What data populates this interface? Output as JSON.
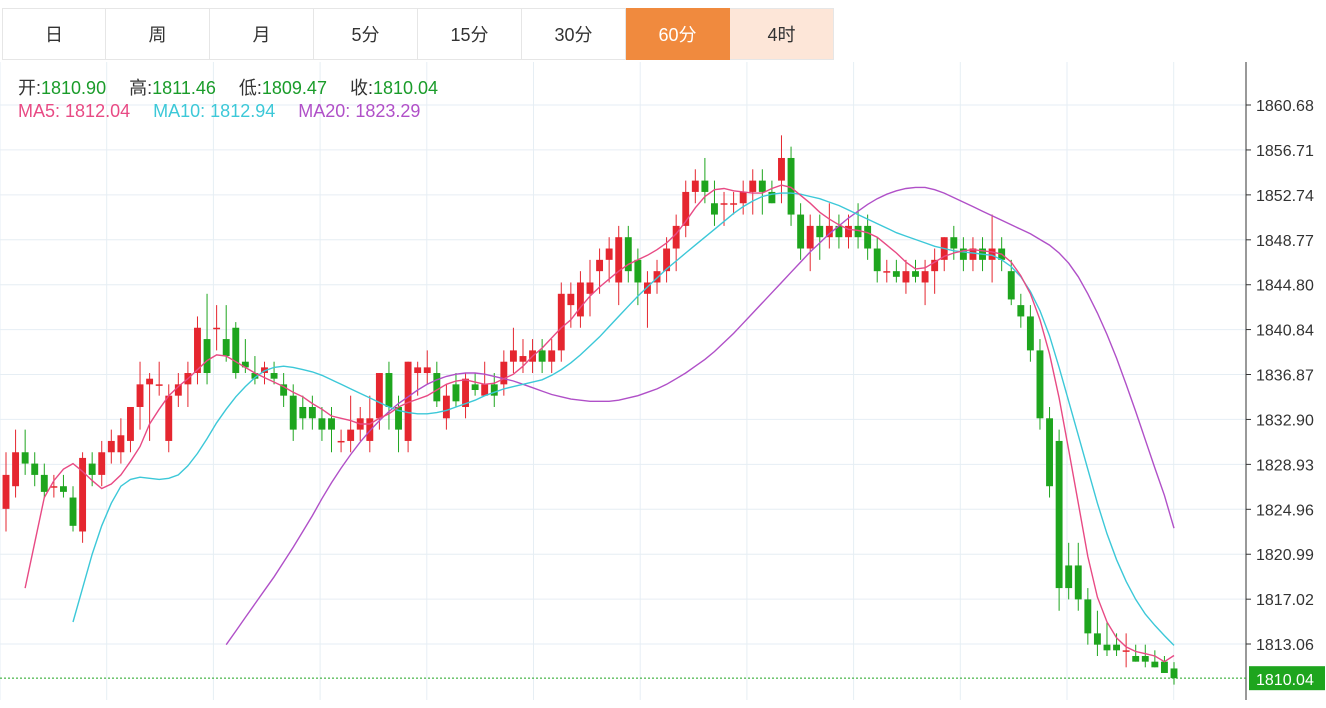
{
  "tabs": [
    {
      "label": "日"
    },
    {
      "label": "周"
    },
    {
      "label": "月"
    },
    {
      "label": "5分"
    },
    {
      "label": "15分"
    },
    {
      "label": "30分"
    },
    {
      "label": "60分",
      "state": "active"
    },
    {
      "label": "4时",
      "state": "hover"
    }
  ],
  "ohlc": {
    "open_label": "开:",
    "open": "1810.90",
    "high_label": "高:",
    "high": "1811.46",
    "low_label": "低:",
    "low": "1809.47",
    "close_label": "收:",
    "close": "1810.04"
  },
  "ma": {
    "ma5_label": "MA5:",
    "ma5": "1812.04",
    "ma10_label": "MA10:",
    "ma10": "1812.94",
    "ma20_label": "MA20:",
    "ma20": "1823.29"
  },
  "colors": {
    "up": "#e5262f",
    "down": "#1ea51e",
    "ma5": "#e84a84",
    "ma10": "#3cc8d8",
    "ma20": "#b050c8",
    "grid": "#e6eef4",
    "active_tab": "#f08a3e",
    "price_tag": "#1ea51e"
  },
  "chart_data": {
    "type": "candlestick",
    "y_ticks": [
      1860.68,
      1856.71,
      1852.74,
      1848.77,
      1844.8,
      1840.84,
      1836.87,
      1832.9,
      1828.93,
      1824.96,
      1820.99,
      1817.02,
      1813.06
    ],
    "last_price_label": "1810.04",
    "last_price": 1810.04,
    "candles": [
      [
        1825,
        1830,
        1823,
        1828
      ],
      [
        1827,
        1832,
        1826,
        1830
      ],
      [
        1830,
        1832,
        1828,
        1829
      ],
      [
        1829,
        1830,
        1827,
        1828
      ],
      [
        1828,
        1829,
        1826,
        1826.5
      ],
      [
        1827,
        1828,
        1826,
        1827
      ],
      [
        1827,
        1828,
        1826,
        1826.5
      ],
      [
        1826,
        1827,
        1823,
        1823.5
      ],
      [
        1823,
        1830,
        1822,
        1829.5
      ],
      [
        1829,
        1830,
        1827,
        1828
      ],
      [
        1828,
        1831,
        1827,
        1830
      ],
      [
        1830,
        1832,
        1829,
        1831
      ],
      [
        1830,
        1833,
        1829,
        1831.5
      ],
      [
        1831,
        1834,
        1830,
        1834
      ],
      [
        1834,
        1838,
        1832,
        1836
      ],
      [
        1836,
        1837,
        1831,
        1836.5
      ],
      [
        1836,
        1838,
        1835,
        1836
      ],
      [
        1831,
        1836,
        1830,
        1835
      ],
      [
        1835,
        1837,
        1834,
        1836
      ],
      [
        1836,
        1838,
        1834,
        1837
      ],
      [
        1837,
        1842,
        1836,
        1841
      ],
      [
        1840,
        1844,
        1836,
        1837
      ],
      [
        1841,
        1843,
        1839,
        1841
      ],
      [
        1840,
        1843,
        1838,
        1838.5
      ],
      [
        1841,
        1841.5,
        1836.5,
        1837
      ],
      [
        1838,
        1840,
        1837,
        1837.5
      ],
      [
        1837,
        1838.5,
        1836,
        1836.5
      ],
      [
        1837,
        1838,
        1836,
        1837.5
      ],
      [
        1837,
        1838,
        1836,
        1836.5
      ],
      [
        1836,
        1837,
        1834,
        1835
      ],
      [
        1835,
        1836,
        1831,
        1832
      ],
      [
        1834,
        1835,
        1832,
        1833
      ],
      [
        1834,
        1835,
        1832,
        1833
      ],
      [
        1833,
        1834,
        1831,
        1832
      ],
      [
        1833,
        1834,
        1830,
        1832
      ],
      [
        1831,
        1832,
        1830,
        1831
      ],
      [
        1831,
        1835,
        1830,
        1832
      ],
      [
        1832,
        1834,
        1831,
        1833
      ],
      [
        1831,
        1835,
        1830,
        1833
      ],
      [
        1833,
        1837,
        1832,
        1837
      ],
      [
        1837,
        1838,
        1832,
        1834
      ],
      [
        1834,
        1835,
        1830,
        1832
      ],
      [
        1831,
        1838,
        1830,
        1838
      ],
      [
        1837,
        1838,
        1835,
        1837.5
      ],
      [
        1837,
        1839,
        1836,
        1837.5
      ],
      [
        1837,
        1838,
        1834,
        1834.5
      ],
      [
        1833,
        1836,
        1832,
        1835
      ],
      [
        1836,
        1837,
        1834,
        1834.5
      ],
      [
        1834,
        1837,
        1833,
        1836.5
      ],
      [
        1836,
        1837,
        1835,
        1835.5
      ],
      [
        1835,
        1838,
        1835,
        1836
      ],
      [
        1836,
        1837,
        1834,
        1835
      ],
      [
        1836,
        1839,
        1835,
        1838
      ],
      [
        1838,
        1841,
        1837,
        1839
      ],
      [
        1838,
        1840,
        1837,
        1838.5
      ],
      [
        1838,
        1840,
        1837,
        1839
      ],
      [
        1839,
        1840,
        1837,
        1838
      ],
      [
        1838,
        1840,
        1837,
        1839
      ],
      [
        1839,
        1845,
        1838,
        1844
      ],
      [
        1843,
        1845,
        1841,
        1844
      ],
      [
        1842,
        1846,
        1841,
        1845
      ],
      [
        1844,
        1847,
        1842,
        1845
      ],
      [
        1846,
        1848,
        1844,
        1847
      ],
      [
        1847,
        1849,
        1845,
        1848
      ],
      [
        1845,
        1850,
        1843,
        1849
      ],
      [
        1849,
        1850,
        1845,
        1846
      ],
      [
        1847,
        1848,
        1843,
        1845
      ],
      [
        1844,
        1846,
        1841,
        1845
      ],
      [
        1845,
        1847,
        1844,
        1846
      ],
      [
        1846,
        1849,
        1845,
        1848
      ],
      [
        1848,
        1851,
        1846,
        1850
      ],
      [
        1850,
        1854,
        1849,
        1853
      ],
      [
        1853,
        1855,
        1852,
        1854
      ],
      [
        1854,
        1856,
        1852,
        1853
      ],
      [
        1852,
        1854,
        1850,
        1851
      ],
      [
        1852,
        1853,
        1850,
        1852
      ],
      [
        1852,
        1853,
        1851,
        1852
      ],
      [
        1852,
        1854,
        1851,
        1853
      ],
      [
        1853,
        1855,
        1851,
        1854
      ],
      [
        1854,
        1855,
        1851,
        1853
      ],
      [
        1853,
        1854,
        1852,
        1852
      ],
      [
        1854,
        1858,
        1852,
        1856
      ],
      [
        1856,
        1857,
        1850,
        1851
      ],
      [
        1851,
        1852,
        1847,
        1848
      ],
      [
        1848,
        1851,
        1846,
        1850
      ],
      [
        1850,
        1851,
        1847,
        1849
      ],
      [
        1849,
        1852,
        1848,
        1850
      ],
      [
        1850,
        1851,
        1848,
        1849
      ],
      [
        1849,
        1851,
        1848,
        1850
      ],
      [
        1850,
        1852,
        1848,
        1849
      ],
      [
        1850,
        1851,
        1847,
        1848
      ],
      [
        1848,
        1849,
        1845,
        1846
      ],
      [
        1846,
        1847,
        1845,
        1846
      ],
      [
        1846,
        1847,
        1845,
        1845.5
      ],
      [
        1845,
        1847,
        1844,
        1846
      ],
      [
        1846,
        1847,
        1845,
        1845.5
      ],
      [
        1845,
        1847,
        1843,
        1846
      ],
      [
        1846,
        1848,
        1844,
        1847
      ],
      [
        1847,
        1849,
        1846,
        1849
      ],
      [
        1849,
        1850,
        1847,
        1848
      ],
      [
        1848,
        1849,
        1846,
        1847
      ],
      [
        1847,
        1849,
        1846,
        1848
      ],
      [
        1848,
        1849,
        1846,
        1847
      ],
      [
        1847,
        1851,
        1845,
        1848
      ],
      [
        1848,
        1849,
        1846,
        1847
      ],
      [
        1846,
        1847,
        1843,
        1843.5
      ],
      [
        1843,
        1844,
        1841,
        1842
      ],
      [
        1842,
        1843,
        1838,
        1839
      ],
      [
        1839,
        1840,
        1832,
        1833
      ],
      [
        1833,
        1834,
        1826,
        1827
      ],
      [
        1831,
        1832,
        1816,
        1818
      ],
      [
        1820,
        1822,
        1817,
        1818
      ],
      [
        1820,
        1822,
        1816,
        1817
      ],
      [
        1817,
        1818,
        1813,
        1814
      ],
      [
        1814,
        1816,
        1812,
        1813
      ],
      [
        1813,
        1815,
        1812,
        1812.5
      ],
      [
        1813,
        1814,
        1812,
        1812.5
      ],
      [
        1812.5,
        1814,
        1811,
        1812.5
      ],
      [
        1812,
        1813,
        1811.5,
        1811.5
      ],
      [
        1812,
        1813,
        1811,
        1811.5
      ],
      [
        1811.5,
        1812.5,
        1811,
        1811
      ],
      [
        1811.5,
        1812,
        1810.5,
        1810.5
      ],
      [
        1810.9,
        1811.46,
        1809.47,
        1810.04
      ]
    ],
    "ma5": [
      1818,
      1822,
      1826,
      1827.5,
      1828.5,
      1829,
      1828.3,
      1827.5,
      1826.8,
      1827.2,
      1828,
      1829.2,
      1830.5,
      1832.5,
      1833.8,
      1835,
      1835.8,
      1836.5,
      1837.3,
      1838.1,
      1838.6,
      1838.5,
      1838,
      1837.5,
      1837,
      1836.6,
      1836.2,
      1835.8,
      1835.3,
      1834.9,
      1834.3,
      1833.8,
      1833.2,
      1833,
      1832.8,
      1832.5,
      1832.5,
      1833,
      1833.4,
      1834,
      1834.4,
      1834.7,
      1835,
      1835.5,
      1836,
      1836.3,
      1836.4,
      1836.2,
      1836,
      1836.1,
      1836.5,
      1836.9,
      1837.6,
      1838.5,
      1839.2,
      1840.1,
      1841,
      1841.7,
      1842.8,
      1843.8,
      1844.6,
      1845.3,
      1846,
      1846.6,
      1847,
      1847.4,
      1847.9,
      1848.5,
      1849.3,
      1850.4,
      1851.6,
      1852.6,
      1853.2,
      1853.3,
      1853.1,
      1853,
      1852.9,
      1852.9,
      1853.3,
      1853.6,
      1853.4,
      1852.7,
      1852,
      1851.2,
      1850.6,
      1850.1,
      1849.7,
      1849.6,
      1849.4,
      1849,
      1848.3,
      1847.6,
      1846.8,
      1846.2,
      1846.3,
      1846.8,
      1847.3,
      1847.6,
      1847.8,
      1847.9,
      1847.8,
      1847.7,
      1847.5,
      1846.8,
      1845.6,
      1844,
      1841.7,
      1838.7,
      1834.8,
      1830.2,
      1825.5,
      1820.8,
      1817.2,
      1815,
      1813.6,
      1812.8,
      1812.4,
      1812.2,
      1812,
      1811.5,
      1812.04
    ],
    "ma10": [
      1815,
      1818,
      1821,
      1823.5,
      1825.5,
      1827,
      1827.6,
      1827.8,
      1827.7,
      1827.6,
      1827.7,
      1828,
      1828.8,
      1829.9,
      1831.2,
      1832.6,
      1833.8,
      1834.9,
      1835.8,
      1836.6,
      1837.2,
      1837.5,
      1837.6,
      1837.5,
      1837.3,
      1837.1,
      1836.8,
      1836.4,
      1836,
      1835.6,
      1835.2,
      1834.8,
      1834.4,
      1834,
      1833.7,
      1833.5,
      1833.4,
      1833.4,
      1833.5,
      1833.7,
      1834,
      1834.3,
      1834.6,
      1835,
      1835.3,
      1835.6,
      1835.8,
      1836,
      1836.2,
      1836.4,
      1836.8,
      1837.3,
      1837.9,
      1838.6,
      1839.4,
      1840.2,
      1841.1,
      1842,
      1842.9,
      1843.8,
      1844.6,
      1845.4,
      1846.2,
      1846.9,
      1847.6,
      1848.3,
      1849,
      1849.7,
      1850.4,
      1851.1,
      1851.7,
      1852.2,
      1852.6,
      1852.8,
      1852.9,
      1852.9,
      1852.8,
      1852.6,
      1852.4,
      1852.1,
      1851.8,
      1851.4,
      1851,
      1850.6,
      1850.2,
      1849.8,
      1849.4,
      1849.1,
      1848.8,
      1848.5,
      1848.2,
      1848,
      1847.8,
      1847.7,
      1847.6,
      1847.5,
      1847.4,
      1847,
      1846.4,
      1845.5,
      1844.2,
      1842.5,
      1840.3,
      1837.5,
      1834.5,
      1831.5,
      1828.5,
      1825.5,
      1822.8,
      1820.5,
      1818.6,
      1817,
      1815.7,
      1814.7,
      1813.8,
      1812.94
    ],
    "ma20": [
      1813,
      1814.2,
      1815.4,
      1816.6,
      1817.8,
      1819,
      1820.3,
      1821.6,
      1823,
      1824.4,
      1825.9,
      1827.3,
      1828.6,
      1829.8,
      1830.9,
      1831.9,
      1832.8,
      1833.6,
      1834.3,
      1834.9,
      1835.5,
      1836,
      1836.4,
      1836.7,
      1836.9,
      1837,
      1837,
      1836.9,
      1836.7,
      1836.5,
      1836.3,
      1836,
      1835.7,
      1835.4,
      1835.1,
      1834.9,
      1834.7,
      1834.6,
      1834.5,
      1834.5,
      1834.5,
      1834.6,
      1834.8,
      1835,
      1835.3,
      1835.6,
      1836,
      1836.5,
      1837,
      1837.6,
      1838.2,
      1838.9,
      1839.7,
      1840.5,
      1841.4,
      1842.3,
      1843.2,
      1844.1,
      1845,
      1845.9,
      1846.8,
      1847.7,
      1848.5,
      1849.3,
      1850,
      1850.7,
      1851.3,
      1851.9,
      1852.4,
      1852.8,
      1853.1,
      1853.3,
      1853.4,
      1853.4,
      1853.2,
      1852.9,
      1852.5,
      1852.1,
      1851.7,
      1851.3,
      1850.9,
      1850.5,
      1850.1,
      1849.7,
      1849.3,
      1848.8,
      1848.3,
      1847.6,
      1846.7,
      1845.5,
      1844,
      1842.3,
      1840.4,
      1838.3,
      1836,
      1833.6,
      1831.1,
      1828.6,
      1826.2,
      1823.29
    ]
  }
}
